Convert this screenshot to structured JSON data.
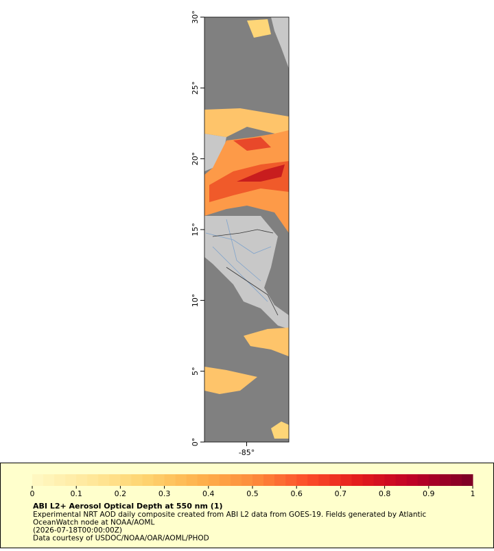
{
  "map": {
    "latlim": [
      0,
      30
    ],
    "lonlim": [
      -88,
      -82
    ],
    "lat_ticks": [
      {
        "value": 0,
        "label": "0°"
      },
      {
        "value": 5,
        "label": "5°"
      },
      {
        "value": 10,
        "label": "10°"
      },
      {
        "value": 15,
        "label": "15°"
      },
      {
        "value": 20,
        "label": "20°"
      },
      {
        "value": 25,
        "label": "25°"
      },
      {
        "value": 30,
        "label": "30°"
      }
    ],
    "lon_ticks": [
      {
        "value": -85,
        "label": "-85°"
      }
    ]
  },
  "colorbar": {
    "range": [
      0,
      1
    ],
    "ticks": [
      0,
      0.1,
      0.2,
      0.3,
      0.4,
      0.5,
      0.6,
      0.7,
      0.8,
      0.9,
      1
    ],
    "colors": [
      "#fff7c0",
      "#ffe79a",
      "#fed470",
      "#feb24c",
      "#fd8d3c",
      "#fc4e2a",
      "#e31a1c",
      "#bd0026",
      "#800026"
    ]
  },
  "legend": {
    "title": "ABI L2+ Aerosol Optical Depth at 550 nm (1)",
    "lines": [
      "Experimental NRT AOD daily composite created from ABI L2 data from GOES-19. Fields generated by Atlantic",
      "OceanWatch node at NOAA/AOML",
      "(2026-07-18T00:00:00Z)",
      "Data courtesy of USDOC/NOAA/OAR/AOML/PHOD"
    ]
  }
}
